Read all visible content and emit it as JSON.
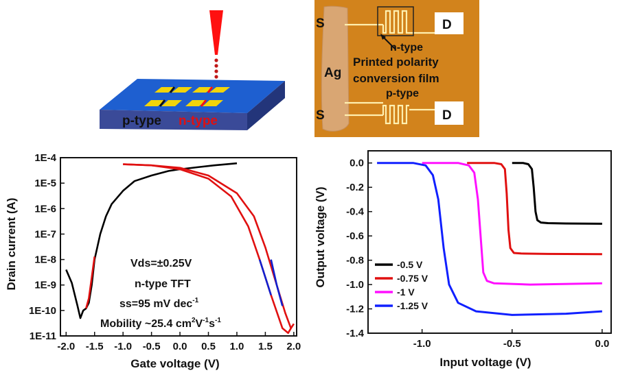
{
  "schematic": {
    "p_label": "p-type",
    "n_label": "n-type",
    "colors": {
      "substrate_top": "#1e5fd0",
      "substrate_side": "#2a3a8a",
      "pad": "#f2d40a",
      "laser": "#ff1010",
      "n_text": "#e01010"
    }
  },
  "photo": {
    "source_top": "S",
    "drain_top": "D",
    "ag_label": "Ag",
    "source_bottom": "S",
    "drain_bottom": "D",
    "ntype_label": "n-type",
    "film_line1": "Printed polarity",
    "film_line2": "conversion film",
    "ptype_label": "p-type"
  },
  "chart_data": [
    {
      "type": "line",
      "title": "",
      "xlabel": "Gate voltage (V)",
      "ylabel": "Drain current (A)",
      "xlim": [
        -2.1,
        2.05
      ],
      "ylim_log10": [
        -11,
        -4
      ],
      "x_ticks": [
        -2.0,
        -1.5,
        -1.0,
        -0.5,
        0.0,
        0.5,
        1.0,
        1.5,
        2.0
      ],
      "x_tick_labels": [
        "-2.0",
        "-1.5",
        "-1.0",
        "-0.5",
        "0.0",
        "0.5",
        "1.0",
        "1.5",
        "2.0"
      ],
      "y_ticks_log10": [
        -4,
        -5,
        -6,
        -7,
        -8,
        -9,
        -10,
        -11
      ],
      "y_tick_labels": [
        "1E-4",
        "1E-5",
        "1E-6",
        "1E-7",
        "1E-8",
        "1E-9",
        "1E-10",
        "1E-11"
      ],
      "series": [
        {
          "name": "p-type black",
          "color": "#000000",
          "x": [
            -2.0,
            -1.9,
            -1.8,
            -1.75,
            -1.7,
            -1.65,
            -1.6,
            -1.55,
            -1.5,
            -1.4,
            -1.3,
            -1.2,
            -1.0,
            -0.8,
            -0.5,
            -0.2,
            0.0,
            0.3,
            0.6,
            1.0
          ],
          "y": [
            4e-09,
            1.2e-09,
            1.5e-10,
            5e-11,
            1e-10,
            1.2e-10,
            2e-10,
            1e-09,
            1e-08,
            1e-07,
            5e-07,
            1.5e-06,
            5e-06,
            1.2e-05,
            2e-05,
            3e-05,
            3.5e-05,
            4.2e-05,
            5e-05,
            6e-05
          ]
        },
        {
          "name": "p-type red overlay",
          "color": "#e01010",
          "x": [
            -1.65,
            -1.6,
            -1.55,
            -1.5
          ],
          "y": [
            1.2e-10,
            3e-10,
            2e-09,
            1.3e-08
          ]
        },
        {
          "name": "n-type red sweep 1",
          "color": "#e01010",
          "x": [
            -1.0,
            -0.5,
            0.0,
            0.5,
            0.9,
            1.2,
            1.4,
            1.6,
            1.8,
            1.9,
            1.95
          ],
          "y": [
            5.5e-05,
            5e-05,
            3.5e-05,
            1.5e-05,
            3e-06,
            2e-07,
            1e-08,
            4e-10,
            2e-11,
            1.3e-11,
            2e-11
          ]
        },
        {
          "name": "n-type red sweep 2",
          "color": "#e01010",
          "x": [
            -1.0,
            -0.5,
            0.0,
            0.5,
            1.0,
            1.3,
            1.5,
            1.7,
            1.85,
            1.95,
            2.0
          ],
          "y": [
            5.5e-05,
            5e-05,
            4e-05,
            2e-05,
            4e-06,
            5e-07,
            3e-08,
            1e-09,
            8e-11,
            2e-11,
            3e-11
          ]
        },
        {
          "name": "n-type blue segment 1",
          "color": "#1020d0",
          "x": [
            1.4,
            1.5,
            1.6
          ],
          "y": [
            1e-08,
            2e-09,
            4e-10
          ]
        },
        {
          "name": "n-type blue segment 2",
          "color": "#1020d0",
          "x": [
            1.6,
            1.7,
            1.8
          ],
          "y": [
            1e-08,
            1e-09,
            1.5e-10
          ]
        }
      ],
      "annotations": [
        {
          "text": "Vds=±0.25V"
        },
        {
          "text": "n-type TFT"
        },
        {
          "text": "ss=95 mV dec",
          "sup": "-1"
        },
        {
          "text": "Mobility ~25.4 cm",
          "sup1": "2",
          "mid": "V",
          "sup2": "-1",
          "tail": "s",
          "sup3": "-1"
        }
      ]
    },
    {
      "type": "line",
      "title": "",
      "xlabel": "Input voltage (V)",
      "ylabel": "Output voltage (V)",
      "xlim": [
        -1.3,
        0.05
      ],
      "ylim": [
        -1.4,
        0.1
      ],
      "x_ticks": [
        -1.0,
        -0.5,
        0.0
      ],
      "x_tick_labels": [
        "-1.0",
        "-0.5",
        "0.0"
      ],
      "y_ticks": [
        0.0,
        -0.2,
        -0.4,
        -0.6,
        -0.8,
        -1.0,
        -1.2,
        -1.4
      ],
      "y_tick_labels": [
        "0.0",
        "-0.2",
        "-0.4",
        "-0.6",
        "-0.8",
        "-1.0",
        "-1.2",
        "-1.4"
      ],
      "legend_position": "bottom-left",
      "series": [
        {
          "name": "-0.5 V",
          "color": "#000000",
          "x": [
            -0.5,
            -0.44,
            -0.41,
            -0.39,
            -0.38,
            -0.37,
            -0.36,
            -0.34,
            -0.3,
            -0.2,
            0.0
          ],
          "y": [
            0.0,
            0.0,
            -0.01,
            -0.05,
            -0.2,
            -0.4,
            -0.47,
            -0.49,
            -0.495,
            -0.498,
            -0.5
          ]
        },
        {
          "name": "-0.75 V",
          "color": "#e01010",
          "x": [
            -0.75,
            -0.6,
            -0.56,
            -0.54,
            -0.53,
            -0.52,
            -0.51,
            -0.49,
            -0.45,
            -0.3,
            0.0
          ],
          "y": [
            0.0,
            0.0,
            -0.01,
            -0.05,
            -0.25,
            -0.55,
            -0.7,
            -0.74,
            -0.745,
            -0.748,
            -0.75
          ]
        },
        {
          "name": "-1 V",
          "color": "#ff10ff",
          "x": [
            -1.0,
            -0.8,
            -0.74,
            -0.71,
            -0.69,
            -0.67,
            -0.66,
            -0.64,
            -0.6,
            -0.4,
            0.0
          ],
          "y": [
            0.0,
            0.0,
            -0.02,
            -0.08,
            -0.3,
            -0.7,
            -0.9,
            -0.97,
            -0.99,
            -1.0,
            -0.99
          ]
        },
        {
          "name": "-1.25 V",
          "color": "#1020ff",
          "x": [
            -1.25,
            -1.05,
            -0.98,
            -0.94,
            -0.91,
            -0.88,
            -0.85,
            -0.8,
            -0.7,
            -0.5,
            -0.2,
            0.0
          ],
          "y": [
            0.0,
            0.0,
            -0.02,
            -0.1,
            -0.3,
            -0.7,
            -1.0,
            -1.15,
            -1.22,
            -1.25,
            -1.24,
            -1.22
          ]
        }
      ]
    }
  ]
}
